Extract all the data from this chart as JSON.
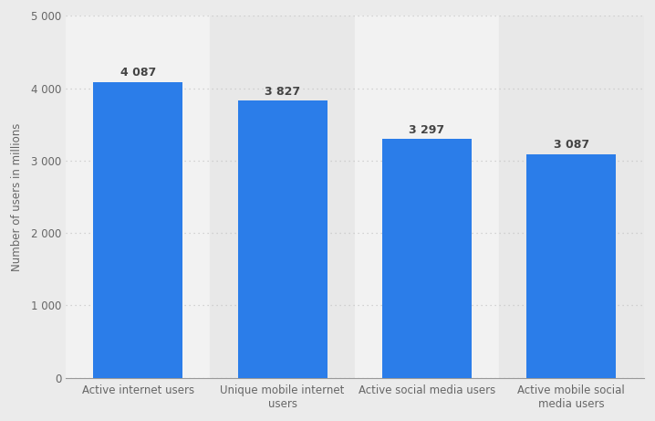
{
  "categories": [
    "Active internet users",
    "Unique mobile internet\nusers",
    "Active social media users",
    "Active mobile social\nmedia users"
  ],
  "values": [
    4087,
    3827,
    3297,
    3087
  ],
  "bar_color": "#2b7de9",
  "bar_labels": [
    "4 087",
    "3 827",
    "3 297",
    "3 087"
  ],
  "ylabel": "Number of users in millions",
  "ylim": [
    0,
    5000
  ],
  "yticks": [
    0,
    1000,
    2000,
    3000,
    4000,
    5000
  ],
  "ytick_labels": [
    "0",
    "1 000",
    "2 000",
    "3 000",
    "4 000",
    "5 000"
  ],
  "fig_bg_color": "#ebebeb",
  "col_bg_white": "#f2f2f2",
  "col_bg_gray": "#e8e8e8",
  "grid_color": "#c8c8c8",
  "bar_label_fontsize": 9.0,
  "ylabel_fontsize": 8.5,
  "tick_fontsize": 8.5,
  "bar_width": 0.62
}
